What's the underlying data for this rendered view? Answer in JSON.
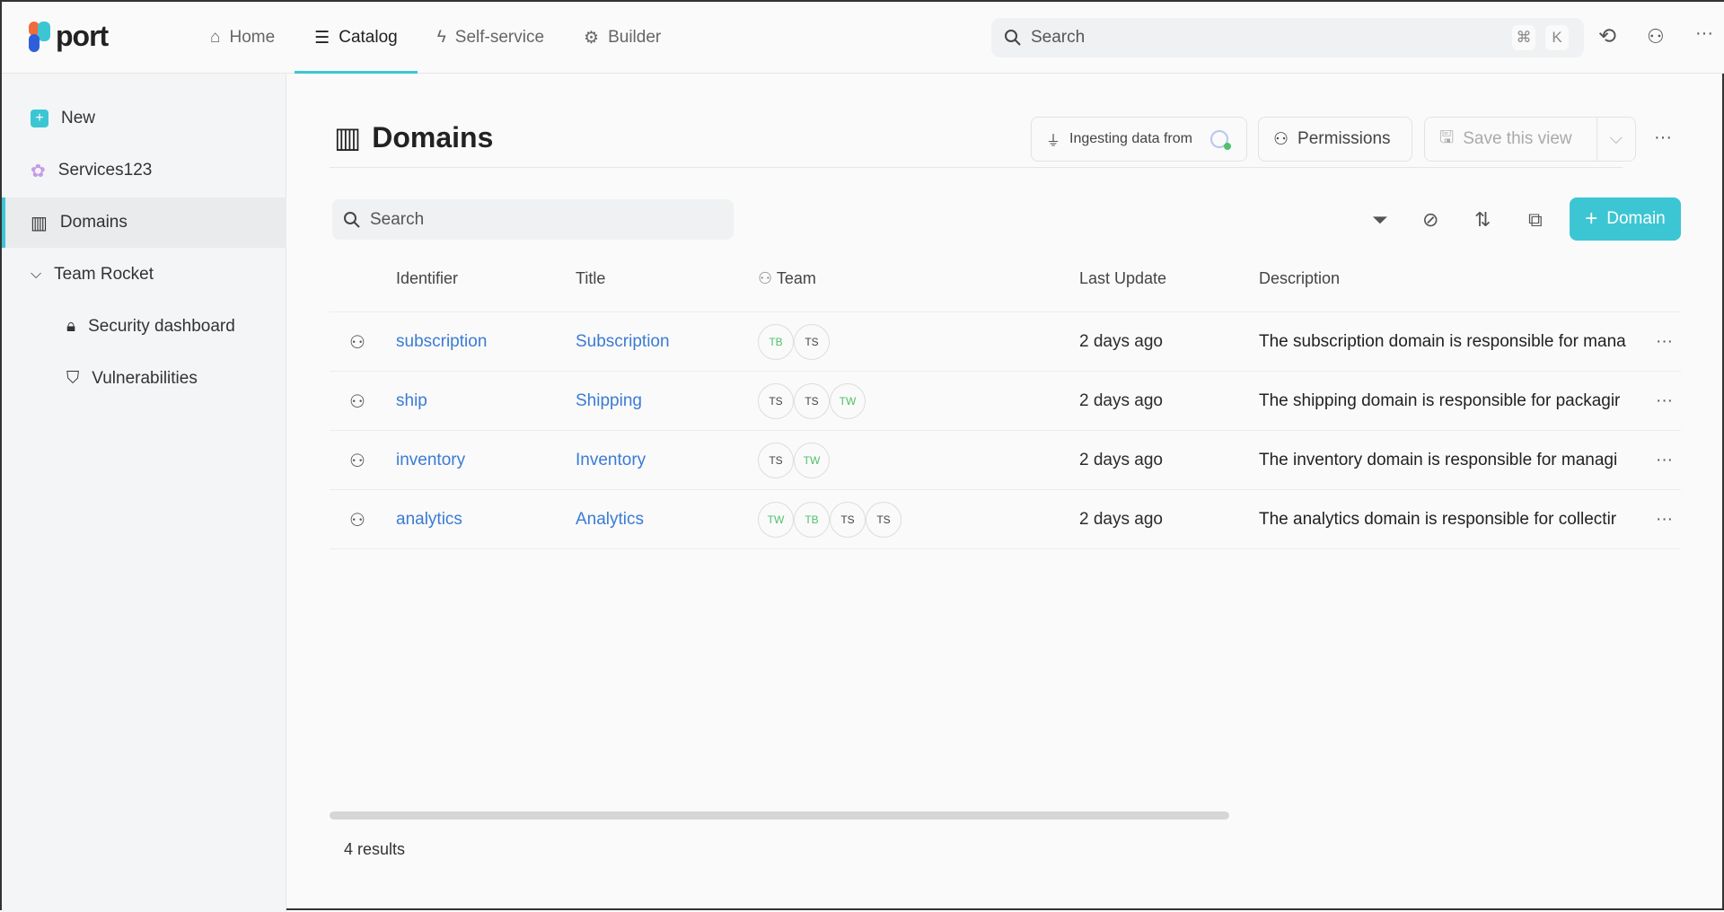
{
  "app": {
    "logo": "port",
    "accent": "#3cc6d3"
  },
  "nav": [
    {
      "label": "Home",
      "icon": "home-icon"
    },
    {
      "label": "Catalog",
      "icon": "list-icon",
      "active": true
    },
    {
      "label": "Self-service",
      "icon": "bolt-icon"
    },
    {
      "label": "Builder",
      "icon": "gear-icon"
    }
  ],
  "global_search": {
    "placeholder": "Search",
    "kbd1": "⌘",
    "kbd2": "K"
  },
  "sidebar": {
    "items": [
      {
        "label": "New"
      },
      {
        "label": "Services123"
      },
      {
        "label": "Domains",
        "active": true
      },
      {
        "label": "Team Rocket"
      },
      {
        "label": "Security dashboard"
      },
      {
        "label": "Vulnerabilities"
      }
    ]
  },
  "page": {
    "title": "Domains",
    "ingesting": "Ingesting data from",
    "permissions": "Permissions",
    "save_view": "Save this view",
    "search_placeholder": "Search",
    "add_button": "Domain"
  },
  "table": {
    "columns": [
      "Identifier",
      "Title",
      "Team",
      "Last Update",
      "Description"
    ],
    "rows": [
      {
        "identifier": "subscription",
        "title": "Subscription",
        "team": [
          "TB",
          "TS"
        ],
        "updated": "2 days ago",
        "description": "The subscription domain is responsible for mana"
      },
      {
        "identifier": "ship",
        "title": "Shipping",
        "team": [
          "TS",
          "TS",
          "TW"
        ],
        "updated": "2 days ago",
        "description": "The shipping domain is responsible for packagir"
      },
      {
        "identifier": "inventory",
        "title": "Inventory",
        "team": [
          "TS",
          "TW"
        ],
        "updated": "2 days ago",
        "description": "The inventory domain is responsible for managi"
      },
      {
        "identifier": "analytics",
        "title": "Analytics",
        "team": [
          "TW",
          "TB",
          "TS",
          "TS"
        ],
        "updated": "2 days ago",
        "description": "The analytics domain is responsible for collectir"
      }
    ]
  },
  "footer": {
    "results": "4 results"
  }
}
